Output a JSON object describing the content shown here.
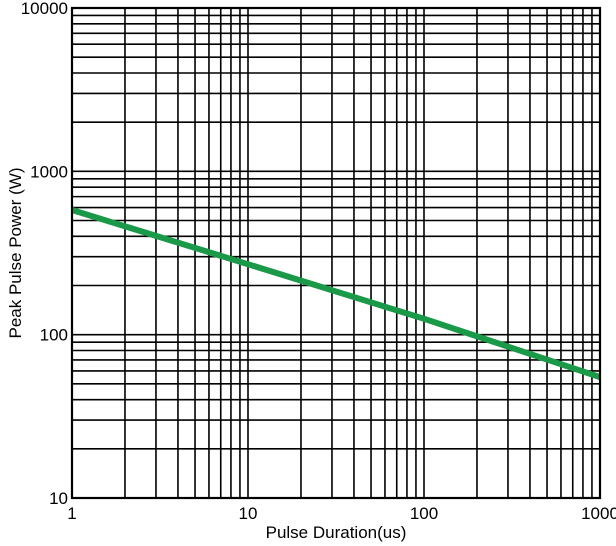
{
  "chart_data": {
    "type": "line",
    "title": "",
    "xlabel": "Pulse Duration(us)",
    "ylabel": "Peak Pulse Power (W)",
    "x_scale": "log",
    "y_scale": "log",
    "xlim": [
      1,
      1000
    ],
    "ylim": [
      10,
      10000
    ],
    "grid": true,
    "x_ticks": [
      1,
      10,
      100,
      1000
    ],
    "x_tick_labels": [
      "1",
      "10",
      "100",
      "1000"
    ],
    "y_ticks": [
      10,
      100,
      1000,
      10000
    ],
    "y_tick_labels": [
      "10",
      "100",
      "1000",
      "10000"
    ],
    "series": [
      {
        "color": "#1a9a48",
        "x": [
          1,
          10,
          100,
          1000
        ],
        "y": [
          580,
          270,
          125,
          55
        ]
      }
    ]
  }
}
